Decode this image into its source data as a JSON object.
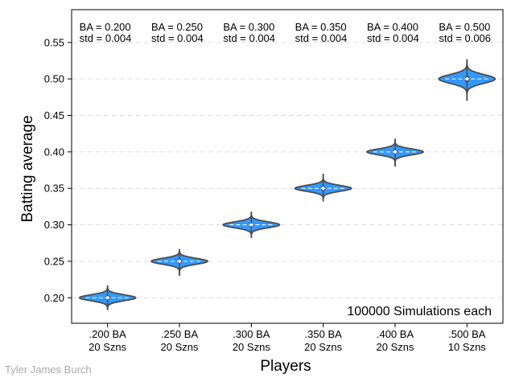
{
  "chart_data": {
    "type": "violin",
    "title": "",
    "xlabel": "Players",
    "ylabel": "Batting average",
    "ylim": [
      0.165,
      0.595
    ],
    "yticks": [
      "0.20",
      "0.25",
      "0.30",
      "0.35",
      "0.40",
      "0.45",
      "0.50",
      "0.55"
    ],
    "grid": "horizontal dashed",
    "violin_color": "#3399ff",
    "categories": [
      {
        "line1": ".200 BA",
        "line2": "20 Szns",
        "mean": 0.2,
        "std": 0.004,
        "min": 0.184,
        "max": 0.216,
        "ba_label": "BA = 0.200",
        "std_label": "std = 0.004"
      },
      {
        "line1": ".250 BA",
        "line2": "20 Szns",
        "mean": 0.25,
        "std": 0.004,
        "min": 0.23,
        "max": 0.266,
        "ba_label": "BA = 0.250",
        "std_label": "std = 0.004"
      },
      {
        "line1": ".300 BA",
        "line2": "20 Szns",
        "mean": 0.3,
        "std": 0.004,
        "min": 0.282,
        "max": 0.318,
        "ba_label": "BA = 0.300",
        "std_label": "std = 0.004"
      },
      {
        "line1": ".350 BA",
        "line2": "20 Szns",
        "mean": 0.35,
        "std": 0.004,
        "min": 0.332,
        "max": 0.37,
        "ba_label": "BA = 0.350",
        "std_label": "std = 0.004"
      },
      {
        "line1": ".400 BA",
        "line2": "20 Szns",
        "mean": 0.4,
        "std": 0.004,
        "min": 0.38,
        "max": 0.418,
        "ba_label": "BA = 0.400",
        "std_label": "std = 0.004"
      },
      {
        "line1": ".500 BA",
        "line2": "10 Szns",
        "mean": 0.5,
        "std": 0.006,
        "min": 0.47,
        "max": 0.526,
        "ba_label": "BA = 0.500",
        "std_label": "std = 0.006"
      }
    ],
    "footer_note": "100000 Simulations each"
  },
  "credit": "Tyler James Burch"
}
